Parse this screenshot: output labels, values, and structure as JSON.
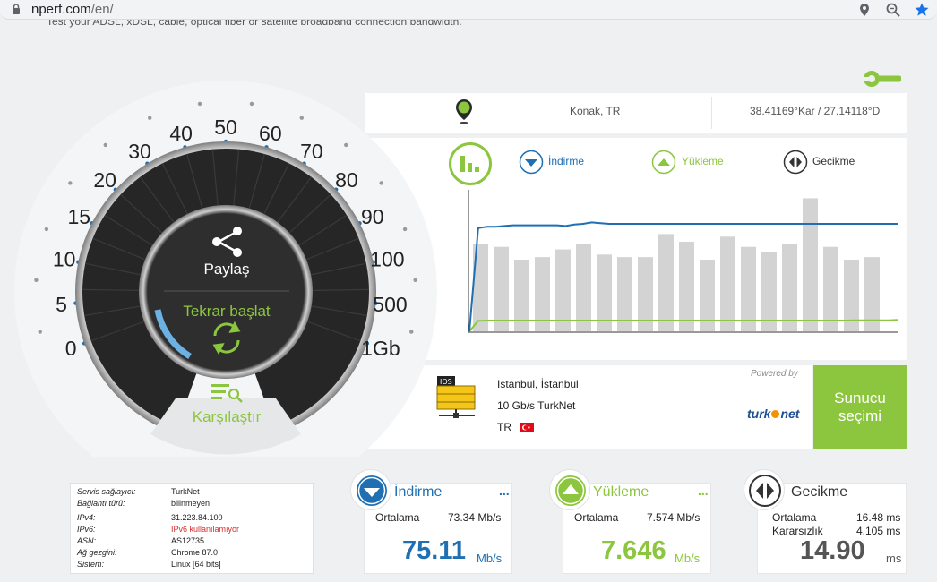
{
  "browser": {
    "domain": "nperf.com",
    "path": "/en/",
    "icons": [
      "lock-icon",
      "location-pin-icon",
      "zoom-icon",
      "bookmark-star-icon"
    ]
  },
  "header": {
    "cut_text": "Test your ADSL, xDSL, cable, optical fiber or satellite broadband connection bandwidth."
  },
  "gauge": {
    "share_label": "Paylaş",
    "restart_label": "Tekrar başlat",
    "compare_label": "Karşılaştır",
    "scale": [
      "0",
      "5",
      "10",
      "15",
      "20",
      "30",
      "40",
      "50",
      "60",
      "70",
      "80",
      "90",
      "100",
      "500",
      "1Gb"
    ]
  },
  "location": {
    "place": "Konak, TR",
    "coords": "38.41169°Kar / 27.14118°D"
  },
  "legend": {
    "download": "İndirme",
    "upload": "Yükleme",
    "latency": "Gecikme"
  },
  "chart_data": {
    "type": "line",
    "title": "",
    "xlabel": "",
    "ylabel": "",
    "grid": false,
    "series": [
      {
        "name": "İndirme",
        "color": "#1f6fb2",
        "values": [
          0,
          72,
          73,
          73,
          73.5,
          74,
          74,
          74,
          74,
          74,
          74,
          73.5,
          74.5,
          75,
          76,
          75.5,
          75,
          75,
          75,
          75,
          75,
          75,
          75,
          75,
          75,
          75,
          75,
          75,
          75,
          75,
          75,
          75,
          75,
          75,
          75,
          75,
          75,
          75,
          75,
          75,
          75,
          75,
          75,
          75,
          75,
          75,
          75,
          75,
          75,
          75
        ]
      },
      {
        "name": "Yükleme",
        "color": "#8cc63f",
        "values": [
          0,
          7.3,
          7.5,
          7.5,
          7.5,
          7.5,
          7.5,
          7.5,
          7.5,
          7.5,
          7.5,
          7.5,
          7.5,
          7.5,
          7.5,
          7.5,
          7.5,
          7.5,
          7.5,
          7.5,
          7.5,
          7.5,
          7.5,
          7.5,
          7.5,
          7.5,
          7.5,
          7.5,
          7.5,
          7.5,
          7.5,
          7.5,
          7.5,
          7.5,
          7.5,
          7.5,
          7.5,
          7.5,
          7.5,
          7.5,
          7.5,
          7.5,
          7.5,
          7.5,
          7.6,
          7.6,
          7.6,
          7.6,
          7.6,
          8
        ]
      },
      {
        "name": "Gecikme",
        "color": "#d3d3d3",
        "values": [
          17,
          16.5,
          14,
          14.5,
          16,
          17,
          15,
          14.5,
          14.5,
          19,
          17.5,
          14,
          18.5,
          16.5,
          15.5,
          17,
          26,
          16.5,
          14,
          14.5
        ]
      }
    ]
  },
  "server": {
    "city": "Istanbul, İstanbul",
    "provider": "10 Gb/s TurkNet",
    "country": "TR",
    "ios_badge": "IOS",
    "powered_by": "Powered by",
    "logo_text_a": "turk",
    "logo_text_b": "net",
    "select_label_1": "Sunucu",
    "select_label_2": "seçimi"
  },
  "info": {
    "rows": [
      {
        "k": "Servis sağlayıcı:",
        "v": "TurkNet",
        "warn": false
      },
      {
        "k": "Bağlantı türü:",
        "v": "bilinmeyen",
        "warn": false
      },
      {
        "k": "IPv4:",
        "v": "31.223.84.100",
        "warn": false
      },
      {
        "k": "IPv6:",
        "v": "IPv6 kullanılamıyor",
        "warn": true
      },
      {
        "k": "ASN:",
        "v": "AS12735",
        "warn": false
      },
      {
        "k": "Ağ gezgini:",
        "v": "Chrome 87.0",
        "warn": false
      },
      {
        "k": "Sistem:",
        "v": "Linux [64 bits]",
        "warn": false
      }
    ]
  },
  "results": {
    "download": {
      "title": "İndirme",
      "more": "...",
      "avg_label": "Ortalama",
      "avg": "73.34 Mb/s",
      "value": "75.11",
      "unit": "Mb/s",
      "color": "#1f6fb2"
    },
    "upload": {
      "title": "Yükleme",
      "more": "...",
      "avg_label": "Ortalama",
      "avg": "7.574 Mb/s",
      "value": "7.646",
      "unit": "Mb/s",
      "color": "#8cc63f"
    },
    "latency": {
      "title": "Gecikme",
      "avg_label": "Ortalama",
      "avg": "16.48 ms",
      "jitter_label": "Kararsızlık",
      "jitter": "4.105 ms",
      "value": "14.90",
      "unit": "ms"
    }
  },
  "colors": {
    "accent_green": "#8cc63f",
    "accent_blue": "#1f6fb2",
    "dial_dark": "#262626",
    "warn_red": "#d32f2f"
  }
}
